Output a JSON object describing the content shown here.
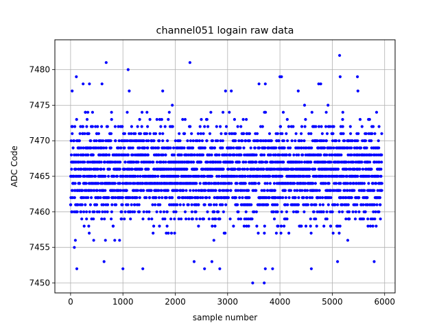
{
  "chart_data": {
    "type": "scatter",
    "title": "channel051 logain raw data",
    "xlabel": "sample number",
    "ylabel": "ADC Code",
    "xlim": [
      -300,
      6200
    ],
    "ylim": [
      7448.6,
      7484.2
    ],
    "xticks": [
      0,
      1000,
      2000,
      3000,
      4000,
      5000,
      6000
    ],
    "yticks": [
      7450,
      7455,
      7460,
      7465,
      7470,
      7475,
      7480
    ],
    "grid": true,
    "marker_color": "#0000ff",
    "marker": "circle",
    "sample_count": 5950,
    "core_range": [
      7460,
      7471
    ],
    "outliers": [
      {
        "x": 120,
        "y": 7452
      },
      {
        "x": 640,
        "y": 7453
      },
      {
        "x": 1000,
        "y": 7452
      },
      {
        "x": 1380,
        "y": 7452
      },
      {
        "x": 2360,
        "y": 7453
      },
      {
        "x": 2560,
        "y": 7452
      },
      {
        "x": 2700,
        "y": 7453
      },
      {
        "x": 2850,
        "y": 7452
      },
      {
        "x": 3480,
        "y": 7450
      },
      {
        "x": 3700,
        "y": 7450
      },
      {
        "x": 3720,
        "y": 7452
      },
      {
        "x": 3860,
        "y": 7452
      },
      {
        "x": 4600,
        "y": 7452
      },
      {
        "x": 5100,
        "y": 7453
      },
      {
        "x": 5800,
        "y": 7453
      },
      {
        "x": 680,
        "y": 7481
      },
      {
        "x": 1100,
        "y": 7480
      },
      {
        "x": 2280,
        "y": 7481
      },
      {
        "x": 5140,
        "y": 7482
      },
      {
        "x": 4000,
        "y": 7479
      },
      {
        "x": 4030,
        "y": 7479
      },
      {
        "x": 5150,
        "y": 7479
      },
      {
        "x": 5480,
        "y": 7479
      },
      {
        "x": 110,
        "y": 7479
      },
      {
        "x": 240,
        "y": 7478
      },
      {
        "x": 360,
        "y": 7478
      },
      {
        "x": 600,
        "y": 7478
      },
      {
        "x": 1760,
        "y": 7477
      },
      {
        "x": 3600,
        "y": 7478
      },
      {
        "x": 3720,
        "y": 7478
      },
      {
        "x": 4740,
        "y": 7478
      },
      {
        "x": 4780,
        "y": 7478
      },
      {
        "x": 5490,
        "y": 7477
      },
      {
        "x": 4350,
        "y": 7477
      },
      {
        "x": 2960,
        "y": 7477
      },
      {
        "x": 3070,
        "y": 7477
      },
      {
        "x": 1120,
        "y": 7477
      },
      {
        "x": 30,
        "y": 7477
      }
    ]
  }
}
